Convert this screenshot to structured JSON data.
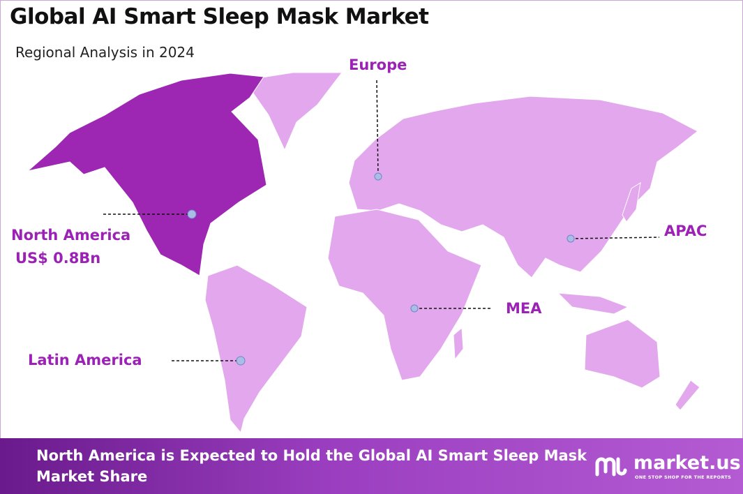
{
  "header": {
    "title": "Global AI Smart Sleep Mask Market",
    "subtitle": "Regional Analysis in 2024"
  },
  "regions": [
    {
      "name": "North America",
      "value_label": "US$ 0.8Bn"
    },
    {
      "name": "Europe"
    },
    {
      "name": "APAC"
    },
    {
      "name": "MEA"
    },
    {
      "name": "Latin America"
    }
  ],
  "footer": {
    "text": "North America is Expected to Hold the Global AI Smart Sleep Mask Market Share",
    "logo": "market.us",
    "tagline": "ONE STOP SHOP FOR THE REPORTS"
  }
}
